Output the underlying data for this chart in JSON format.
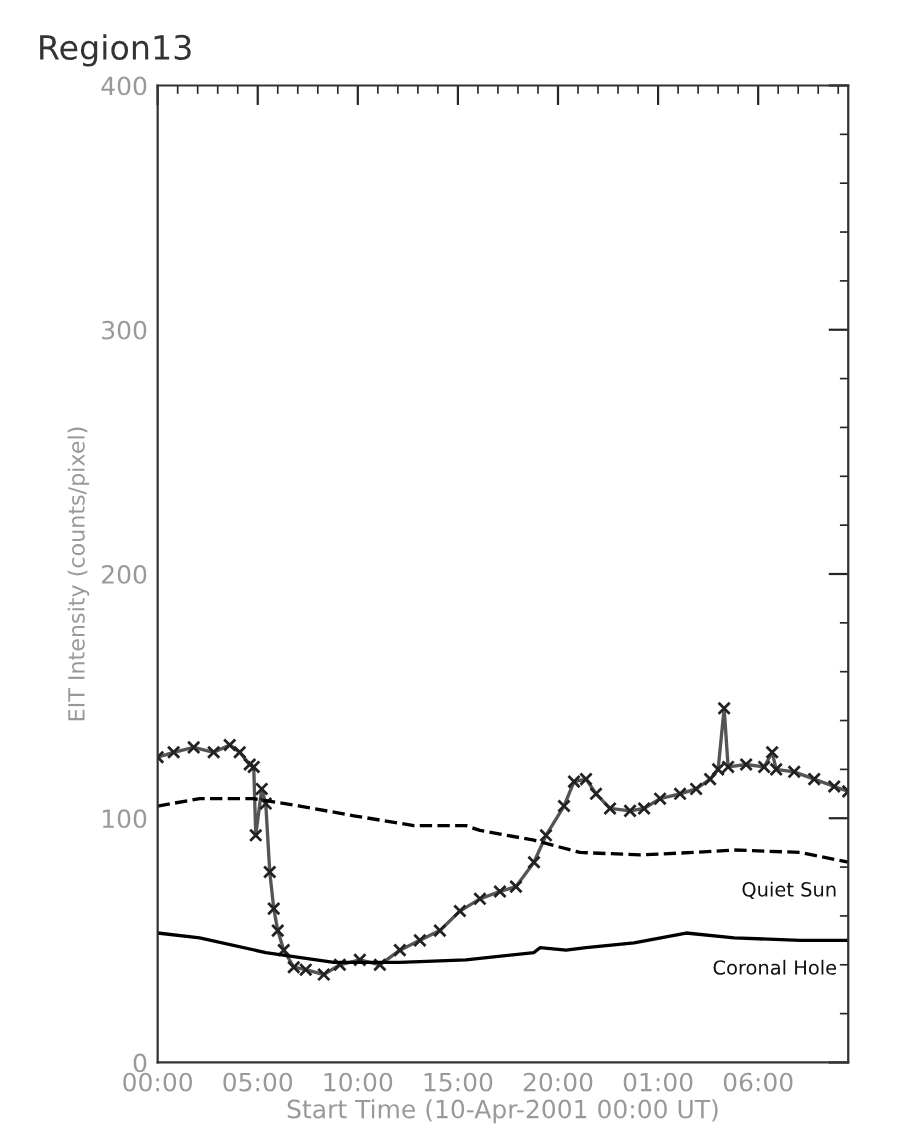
{
  "chart_data": {
    "type": "line",
    "title": "Region13",
    "xlabel": "Start Time (10-Apr-2001 00:00 UT)",
    "ylabel": "EIT Intensity (counts/pixel)",
    "xlim": [
      "2001-04-10T00:00",
      "2001-04-11T10:30"
    ],
    "ylim": [
      0,
      400
    ],
    "xticks": [
      {
        "value": "2001-04-10T00:00",
        "label": "00:00"
      },
      {
        "value": "2001-04-10T05:00",
        "label": "05:00"
      },
      {
        "value": "2001-04-10T10:00",
        "label": "10:00"
      },
      {
        "value": "2001-04-10T15:00",
        "label": "15:00"
      },
      {
        "value": "2001-04-10T20:00",
        "label": "20:00"
      },
      {
        "value": "2001-04-11T01:00",
        "label": "01:00"
      },
      {
        "value": "2001-04-11T06:00",
        "label": "06:00"
      }
    ],
    "yticks": [
      0,
      100,
      200,
      300,
      400
    ],
    "grid": false,
    "legend": false,
    "series": [
      {
        "color": "#555555",
        "marker": "cross",
        "line_style": "solid",
        "x": [
          "2001-04-10T00:00",
          "2001-04-10T00:48",
          "2001-04-10T01:48",
          "2001-04-10T02:48",
          "2001-04-10T03:36",
          "2001-04-10T04:06",
          "2001-04-10T04:36",
          "2001-04-10T04:48",
          "2001-04-10T04:54",
          "2001-04-10T05:12",
          "2001-04-10T05:24",
          "2001-04-10T05:36",
          "2001-04-10T05:48",
          "2001-04-10T06:00",
          "2001-04-10T06:18",
          "2001-04-10T06:48",
          "2001-04-10T07:24",
          "2001-04-10T08:18",
          "2001-04-10T09:06",
          "2001-04-10T10:06",
          "2001-04-10T11:06",
          "2001-04-10T12:06",
          "2001-04-10T13:06",
          "2001-04-10T14:06",
          "2001-04-10T15:06",
          "2001-04-10T16:06",
          "2001-04-10T17:06",
          "2001-04-10T17:54",
          "2001-04-10T18:48",
          "2001-04-10T19:24",
          "2001-04-10T20:18",
          "2001-04-10T20:48",
          "2001-04-10T21:24",
          "2001-04-10T21:54",
          "2001-04-10T22:36",
          "2001-04-10T23:36",
          "2001-04-11T00:18",
          "2001-04-11T01:06",
          "2001-04-11T02:06",
          "2001-04-11T02:54",
          "2001-04-11T03:36",
          "2001-04-11T04:00",
          "2001-04-11T04:18",
          "2001-04-11T04:30",
          "2001-04-11T05:24",
          "2001-04-11T06:18",
          "2001-04-11T06:42",
          "2001-04-11T06:54",
          "2001-04-11T07:48",
          "2001-04-11T08:48",
          "2001-04-11T09:48",
          "2001-04-11T10:30"
        ],
        "values": [
          125,
          127,
          129,
          127,
          130,
          127,
          122,
          121,
          93,
          112,
          106,
          78,
          63,
          54,
          46,
          39,
          38,
          36,
          40,
          42,
          40,
          46,
          50,
          54,
          62,
          67,
          70,
          72,
          82,
          93,
          105,
          115,
          116,
          110,
          104,
          103,
          104,
          108,
          110,
          112,
          116,
          120,
          145,
          121,
          122,
          121,
          127,
          120,
          119,
          116,
          113,
          111
        ]
      },
      {
        "name": "Quiet Sun",
        "color": "#000000",
        "marker": "none",
        "line_style": "dashed",
        "x": [
          "2001-04-10T00:00",
          "2001-04-10T02:06",
          "2001-04-10T04:48",
          "2001-04-10T07:06",
          "2001-04-10T09:48",
          "2001-04-10T12:48",
          "2001-04-10T15:24",
          "2001-04-10T16:06",
          "2001-04-10T18:48",
          "2001-04-10T21:06",
          "2001-04-11T00:06",
          "2001-04-11T02:48",
          "2001-04-11T04:48",
          "2001-04-11T08:06",
          "2001-04-11T10:30"
        ],
        "values": [
          105,
          108,
          108,
          105,
          101,
          97,
          97,
          95,
          91,
          86,
          85,
          86,
          87,
          86,
          82
        ]
      },
      {
        "name": "Coronal Hole",
        "color": "#000000",
        "marker": "none",
        "line_style": "solid",
        "x": [
          "2001-04-10T00:00",
          "2001-04-10T02:06",
          "2001-04-10T05:24",
          "2001-04-10T08:48",
          "2001-04-10T12:06",
          "2001-04-10T15:24",
          "2001-04-10T18:48",
          "2001-04-10T19:06",
          "2001-04-10T20:24",
          "2001-04-10T21:24",
          "2001-04-10T23:48",
          "2001-04-11T02:24",
          "2001-04-11T04:48",
          "2001-04-11T08:06",
          "2001-04-11T10:30"
        ],
        "values": [
          53,
          51,
          45,
          41,
          41,
          42,
          45,
          47,
          46,
          47,
          49,
          53,
          51,
          50,
          50
        ]
      }
    ]
  }
}
